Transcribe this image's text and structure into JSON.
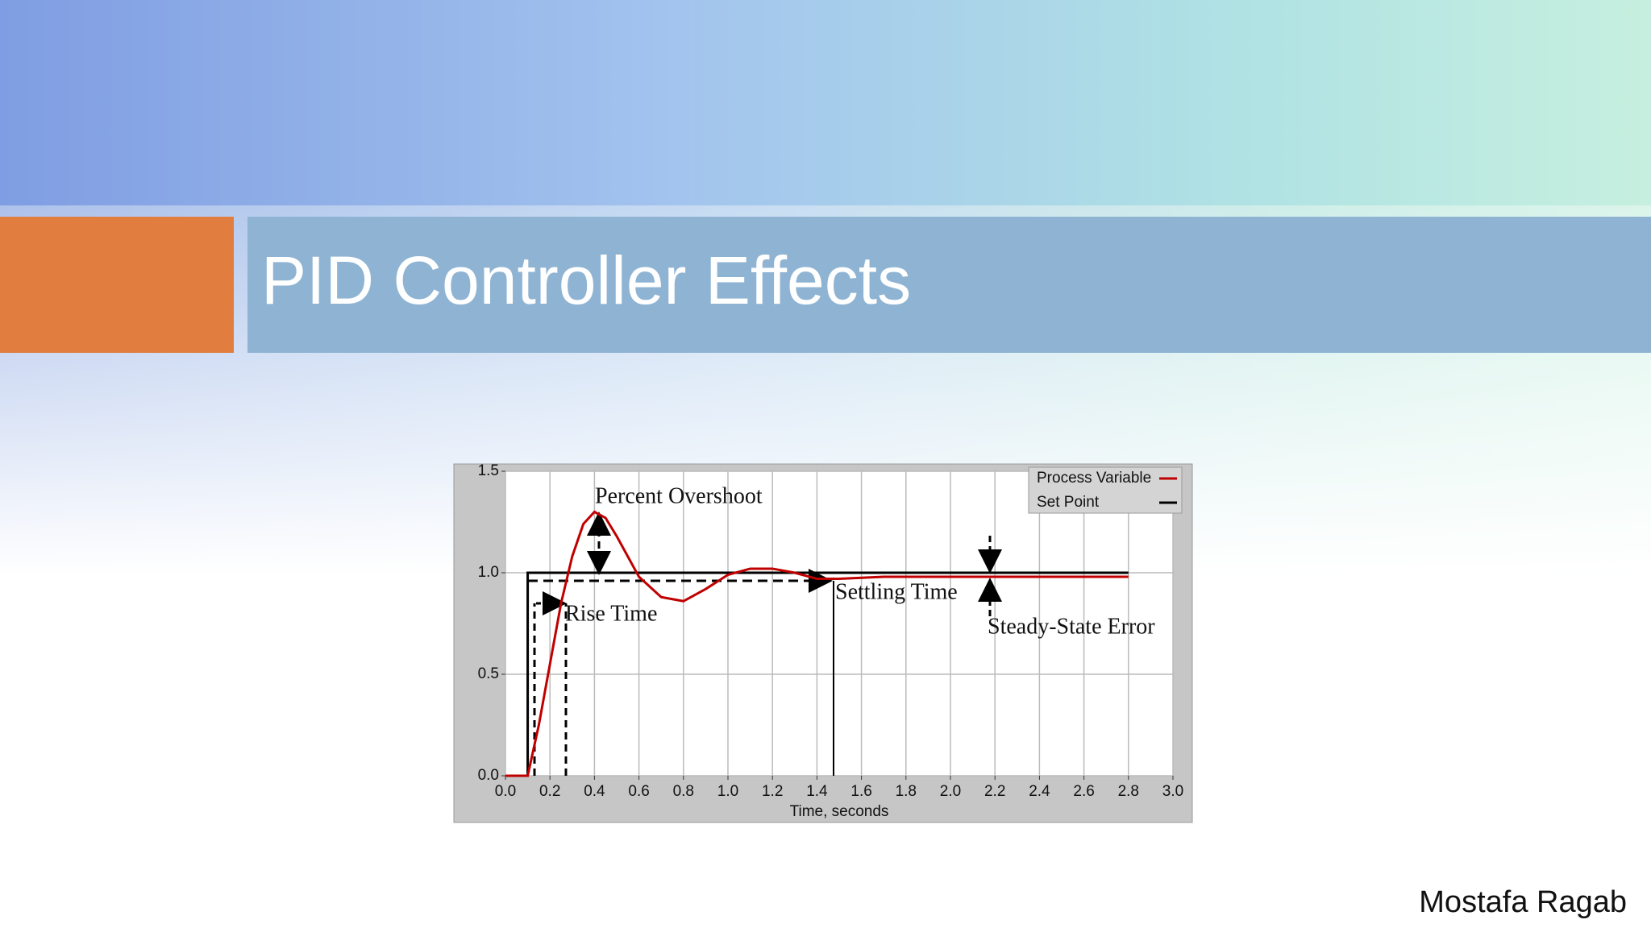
{
  "slide": {
    "title": "PID Controller Effects",
    "author": "Mostafa Ragab"
  },
  "chart_data": {
    "type": "line",
    "xlabel": "Time, seconds",
    "xlim": [
      0,
      3.0
    ],
    "xticks": [
      {
        "value": 0,
        "label": "0.0"
      },
      {
        "value": 0.2,
        "label": "0.2"
      },
      {
        "value": 0.4,
        "label": "0.4"
      },
      {
        "value": 0.6,
        "label": "0.6"
      },
      {
        "value": 0.8,
        "label": "0.8"
      },
      {
        "value": 1.0,
        "label": "1.0"
      },
      {
        "value": 1.2,
        "label": "1.2"
      },
      {
        "value": 1.4,
        "label": "1.4"
      },
      {
        "value": 1.6,
        "label": "1.6"
      },
      {
        "value": 1.8,
        "label": "1.8"
      },
      {
        "value": 2.0,
        "label": "2.0"
      },
      {
        "value": 2.2,
        "label": "2.2"
      },
      {
        "value": 2.4,
        "label": "2.4"
      },
      {
        "value": 2.6,
        "label": "2.6"
      },
      {
        "value": 2.8,
        "label": "2.8"
      },
      {
        "value": 3.0,
        "label": "3.0"
      }
    ],
    "ylim": [
      0,
      1.5
    ],
    "yticks": [
      {
        "value": 0,
        "label": "0.0"
      },
      {
        "value": 0.5,
        "label": "0.5"
      },
      {
        "value": 1.0,
        "label": "1.0"
      },
      {
        "value": 1.5,
        "label": "1.5"
      }
    ],
    "grid": true,
    "legend": "top-right",
    "series": [
      {
        "name": "Process Variable",
        "color": "#c00000",
        "x": [
          0,
          0.1,
          0.15,
          0.2,
          0.25,
          0.3,
          0.35,
          0.4,
          0.45,
          0.5,
          0.6,
          0.7,
          0.8,
          0.9,
          1.0,
          1.1,
          1.2,
          1.3,
          1.4,
          1.5,
          1.7,
          2.0,
          2.4,
          2.8
        ],
        "values": [
          0,
          0,
          0.25,
          0.55,
          0.85,
          1.08,
          1.24,
          1.3,
          1.27,
          1.18,
          0.98,
          0.88,
          0.86,
          0.92,
          0.99,
          1.02,
          1.02,
          1.0,
          0.97,
          0.97,
          0.98,
          0.98,
          0.98,
          0.98
        ]
      },
      {
        "name": "Set Point",
        "color": "#000000",
        "x": [
          0.1,
          0.1,
          2.8
        ],
        "values": [
          0,
          1.0,
          1.0
        ]
      }
    ],
    "annotations": [
      "Percent Overshoot",
      "Rise Time",
      "Settling Time",
      "Steady-State Error"
    ]
  }
}
